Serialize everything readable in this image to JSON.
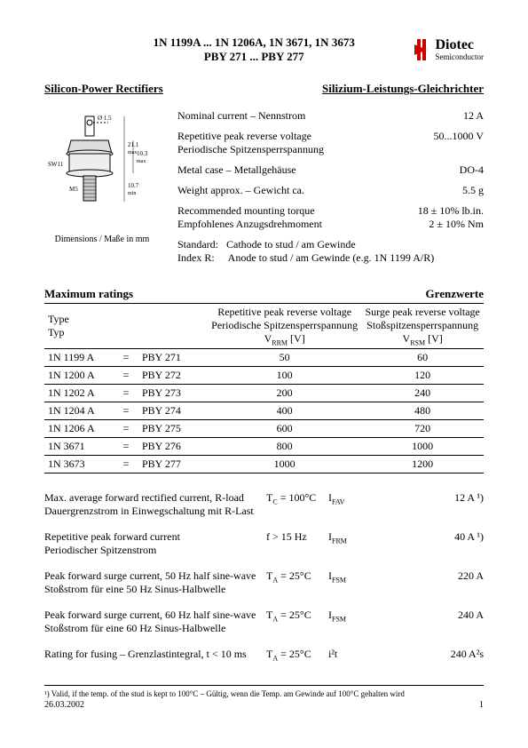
{
  "header": {
    "title_line1": "1N 1199A ... 1N 1206A, 1N 3671, 1N 3673",
    "title_line2": "PBY 271 ... PBY 277",
    "logo_main": "Diotec",
    "logo_sub": "Semiconductor"
  },
  "section": {
    "left": "Silicon-Power Rectifiers",
    "right": "Silizium-Leistungs-Gleichrichter"
  },
  "diagram": {
    "dia_label": "Ø 1.5+0.5",
    "h1": "21.1",
    "h1_sub": "max",
    "h2": "10.3",
    "h2_sub": "max",
    "h3": "10.7",
    "h3_sub": "min",
    "sw": "SW11",
    "thread": "M5",
    "dims_note": "Dimensions / Maße in mm"
  },
  "specs": [
    {
      "label": "Nominal current – Nennstrom",
      "label2": "",
      "value": "12 A"
    },
    {
      "label": "Repetitive peak reverse voltage",
      "label2": "Periodische Spitzensperrspannung",
      "value": "50...1000 V"
    },
    {
      "label": "Metal case – Metallgehäuse",
      "label2": "",
      "value": "DO-4"
    },
    {
      "label": "Weight approx. – Gewicht ca.",
      "label2": "",
      "value": "5.5 g"
    },
    {
      "label": "Recommended mounting torque",
      "label2": "Empfohlenes Anzugsdrehmoment",
      "value": "18 ± 10% lb.in.",
      "value2": "2 ± 10% Nm"
    }
  ],
  "std_note": {
    "l1a": "Standard:",
    "l1b": "Cathode to stud / am Gewinde",
    "l2a": "Index R:",
    "l2b": "Anode to stud / am Gewinde (e.g. 1N 1199 A/R)"
  },
  "maxhead": {
    "left": "Maximum ratings",
    "right": "Grenzwerte"
  },
  "ratings": {
    "head": {
      "type": "Type",
      "typ": "Typ",
      "vrrm1": "Repetitive peak reverse voltage",
      "vrrm2": "Periodische Spitzensperrspannung",
      "vrrm3": "VRRM [V]",
      "vrsm1": "Surge peak reverse voltage",
      "vrsm2": "Stoßspitzensperrspannung",
      "vrsm3": "VRSM [V]"
    },
    "rows": [
      {
        "a": "1N 1199 A",
        "eq": "=",
        "b": "PBY 271",
        "vrrm": "50",
        "vrsm": "60"
      },
      {
        "a": "1N 1200 A",
        "eq": "=",
        "b": "PBY 272",
        "vrrm": "100",
        "vrsm": "120"
      },
      {
        "a": "1N 1202 A",
        "eq": "=",
        "b": "PBY 273",
        "vrrm": "200",
        "vrsm": "240"
      },
      {
        "a": "1N 1204 A",
        "eq": "=",
        "b": "PBY 274",
        "vrrm": "400",
        "vrsm": "480"
      },
      {
        "a": "1N 1206 A",
        "eq": "=",
        "b": "PBY 275",
        "vrrm": "600",
        "vrsm": "720"
      },
      {
        "a": "1N 3671",
        "eq": "=",
        "b": "PBY 276",
        "vrrm": "800",
        "vrsm": "1000"
      },
      {
        "a": "1N 3673",
        "eq": "=",
        "b": "PBY 277",
        "vrrm": "1000",
        "vrsm": "1200"
      }
    ]
  },
  "params": [
    {
      "l1": "Max. average forward rectified current, R-load",
      "l2": "Dauergrenzstrom in Einwegschaltung mit R-Last",
      "cond": "TC = 100°C",
      "sym": "IFAV",
      "val": "12 A ¹)"
    },
    {
      "l1": "Repetitive peak forward current",
      "l2": "Periodischer Spitzenstrom",
      "cond": "f > 15 Hz",
      "sym": "IFRM",
      "val": "40 A ¹)"
    },
    {
      "l1": "Peak forward surge current, 50 Hz half sine-wave",
      "l2": "Stoßstrom für eine 50 Hz Sinus-Halbwelle",
      "cond": "TA = 25°C",
      "sym": "IFSM",
      "val": "220 A"
    },
    {
      "l1": "Peak forward surge current, 60 Hz half sine-wave",
      "l2": "Stoßstrom für eine 60 Hz Sinus-Halbwelle",
      "cond": "TA = 25°C",
      "sym": "IFSM",
      "val": "240 A"
    },
    {
      "l1": "Rating for fusing – Grenzlastintegral, t < 10 ms",
      "l2": "",
      "cond": "TA = 25°C",
      "sym": "i²t",
      "val": "240 A²s"
    }
  ],
  "footnote": "¹)   Valid, if the temp. of the stud is kept to 100°C – Gültig, wenn die Temp. am Gewinde auf 100°C gehalten wird",
  "footer": {
    "date": "26.03.2002",
    "page": "1"
  }
}
